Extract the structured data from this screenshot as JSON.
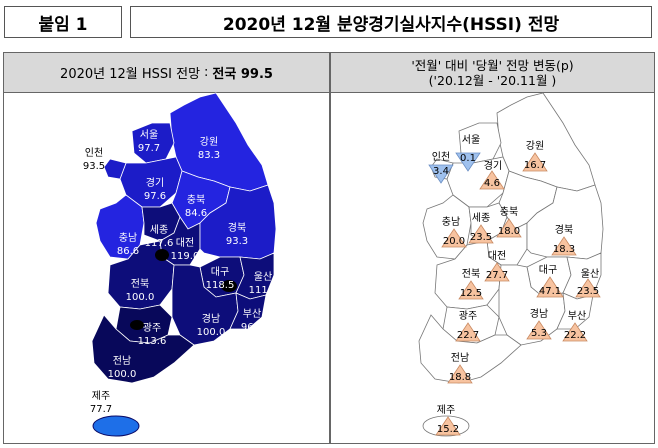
{
  "header": {
    "tag": "붙임 1",
    "title": "2020년 12월 분양경기실사지수(HSSI) 전망"
  },
  "left": {
    "heading_main": "2020년 12월 HSSI 전망",
    "heading_sep": ":",
    "heading_national": "전국 99.5",
    "regions": [
      {
        "name": "서울",
        "value": "97.7"
      },
      {
        "name": "인천",
        "value": "93.5"
      },
      {
        "name": "경기",
        "value": "97.6"
      },
      {
        "name": "강원",
        "value": "83.3"
      },
      {
        "name": "충북",
        "value": "84.6"
      },
      {
        "name": "세종",
        "value": "117.6"
      },
      {
        "name": "충남",
        "value": "86.6"
      },
      {
        "name": "대전",
        "value": "119.0"
      },
      {
        "name": "경북",
        "value": "93.3"
      },
      {
        "name": "전북",
        "value": "100.0"
      },
      {
        "name": "대구",
        "value": "118.5"
      },
      {
        "name": "울산",
        "value": "111.7"
      },
      {
        "name": "광주",
        "value": "113.6"
      },
      {
        "name": "경남",
        "value": "100.0"
      },
      {
        "name": "부산",
        "value": "96.2"
      },
      {
        "name": "전남",
        "value": "100.0"
      },
      {
        "name": "제주",
        "value": "77.7"
      }
    ]
  },
  "right": {
    "heading_line1": "'전월' 대비 '당월' 전망 변동(p)",
    "heading_line2": "('20.12월 - '20.11월 )",
    "regions": [
      {
        "name": "서울",
        "change": "0.1",
        "direction": "down"
      },
      {
        "name": "인천",
        "change": "3.4",
        "direction": "down"
      },
      {
        "name": "경기",
        "change": "4.6",
        "direction": "up"
      },
      {
        "name": "강원",
        "change": "16.7",
        "direction": "up"
      },
      {
        "name": "충북",
        "change": "18.0",
        "direction": "up"
      },
      {
        "name": "세종",
        "change": "23.5",
        "direction": "up"
      },
      {
        "name": "충남",
        "change": "20.0",
        "direction": "up"
      },
      {
        "name": "대전",
        "change": "27.7",
        "direction": "up"
      },
      {
        "name": "경북",
        "change": "18.3",
        "direction": "up"
      },
      {
        "name": "전북",
        "change": "12.5",
        "direction": "up"
      },
      {
        "name": "대구",
        "change": "47.1",
        "direction": "up"
      },
      {
        "name": "울산",
        "change": "23.5",
        "direction": "up"
      },
      {
        "name": "광주",
        "change": "22.7",
        "direction": "up"
      },
      {
        "name": "경남",
        "change": "5.3",
        "direction": "up"
      },
      {
        "name": "부산",
        "change": "22.2",
        "direction": "up"
      },
      {
        "name": "전남",
        "change": "18.8",
        "direction": "up"
      },
      {
        "name": "제주",
        "change": "15.2",
        "direction": "up"
      }
    ]
  },
  "colors": {
    "bright_blue": "#2020e6",
    "mid_blue": "#1a1aa8",
    "dark_navy": "#0a0a66",
    "darkest_navy": "#050540",
    "jeju_blue": "#1e6fe8",
    "up_triangle": "#f7c3a0",
    "down_triangle": "#9fc1ee"
  }
}
